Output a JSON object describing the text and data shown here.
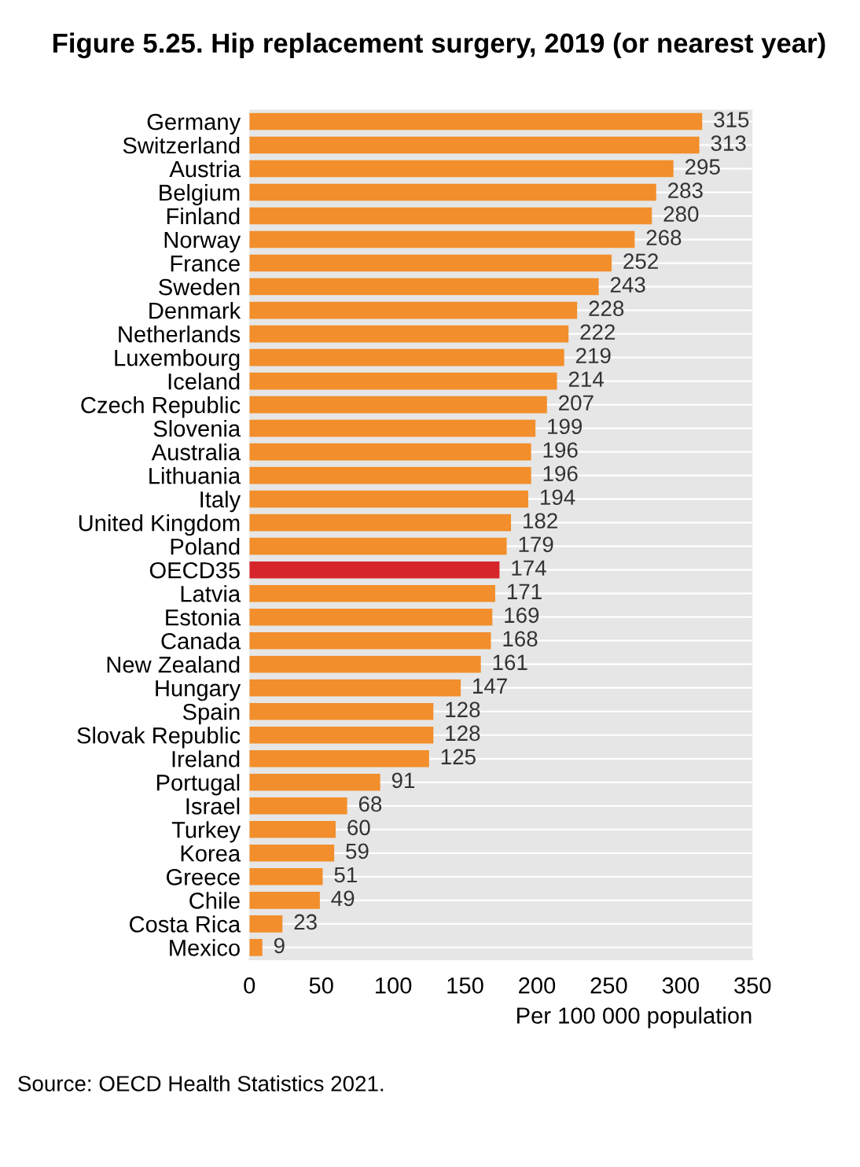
{
  "chart_data": {
    "type": "bar",
    "orientation": "horizontal",
    "title": "Figure 5.25. Hip replacement surgery, 2019 (or nearest year)",
    "xlabel": "Per 100 000 population",
    "categories": [
      "Germany",
      "Switzerland",
      "Austria",
      "Belgium",
      "Finland",
      "Norway",
      "France",
      "Sweden",
      "Denmark",
      "Netherlands",
      "Luxembourg",
      "Iceland",
      "Czech Republic",
      "Slovenia",
      "Australia",
      "Lithuania",
      "Italy",
      "United Kingdom",
      "Poland",
      "OECD35",
      "Latvia",
      "Estonia",
      "Canada",
      "New Zealand",
      "Hungary",
      "Spain",
      "Slovak Republic",
      "Ireland",
      "Portugal",
      "Israel",
      "Turkey",
      "Korea",
      "Greece",
      "Chile",
      "Costa Rica",
      "Mexico"
    ],
    "values": [
      315,
      313,
      295,
      283,
      280,
      268,
      252,
      243,
      228,
      222,
      219,
      214,
      207,
      199,
      196,
      196,
      194,
      182,
      179,
      174,
      171,
      169,
      168,
      161,
      147,
      128,
      128,
      125,
      91,
      68,
      60,
      59,
      51,
      49,
      23,
      9
    ],
    "colors": [
      "#f28e2b",
      "#f28e2b",
      "#f28e2b",
      "#f28e2b",
      "#f28e2b",
      "#f28e2b",
      "#f28e2b",
      "#f28e2b",
      "#f28e2b",
      "#f28e2b",
      "#f28e2b",
      "#f28e2b",
      "#f28e2b",
      "#f28e2b",
      "#f28e2b",
      "#f28e2b",
      "#f28e2b",
      "#f28e2b",
      "#f28e2b",
      "#d7262b",
      "#f28e2b",
      "#f28e2b",
      "#f28e2b",
      "#f28e2b",
      "#f28e2b",
      "#f28e2b",
      "#f28e2b",
      "#f28e2b",
      "#f28e2b",
      "#f28e2b",
      "#f28e2b",
      "#f28e2b",
      "#f28e2b",
      "#f28e2b",
      "#f28e2b",
      "#f28e2b"
    ],
    "xlim": [
      0,
      350
    ],
    "xticks": [
      0,
      50,
      100,
      150,
      200,
      250,
      300,
      350
    ],
    "data_labels": true,
    "grid": false,
    "legend": false,
    "annotations": [
      "Source: OECD Health Statistics 2021."
    ]
  }
}
